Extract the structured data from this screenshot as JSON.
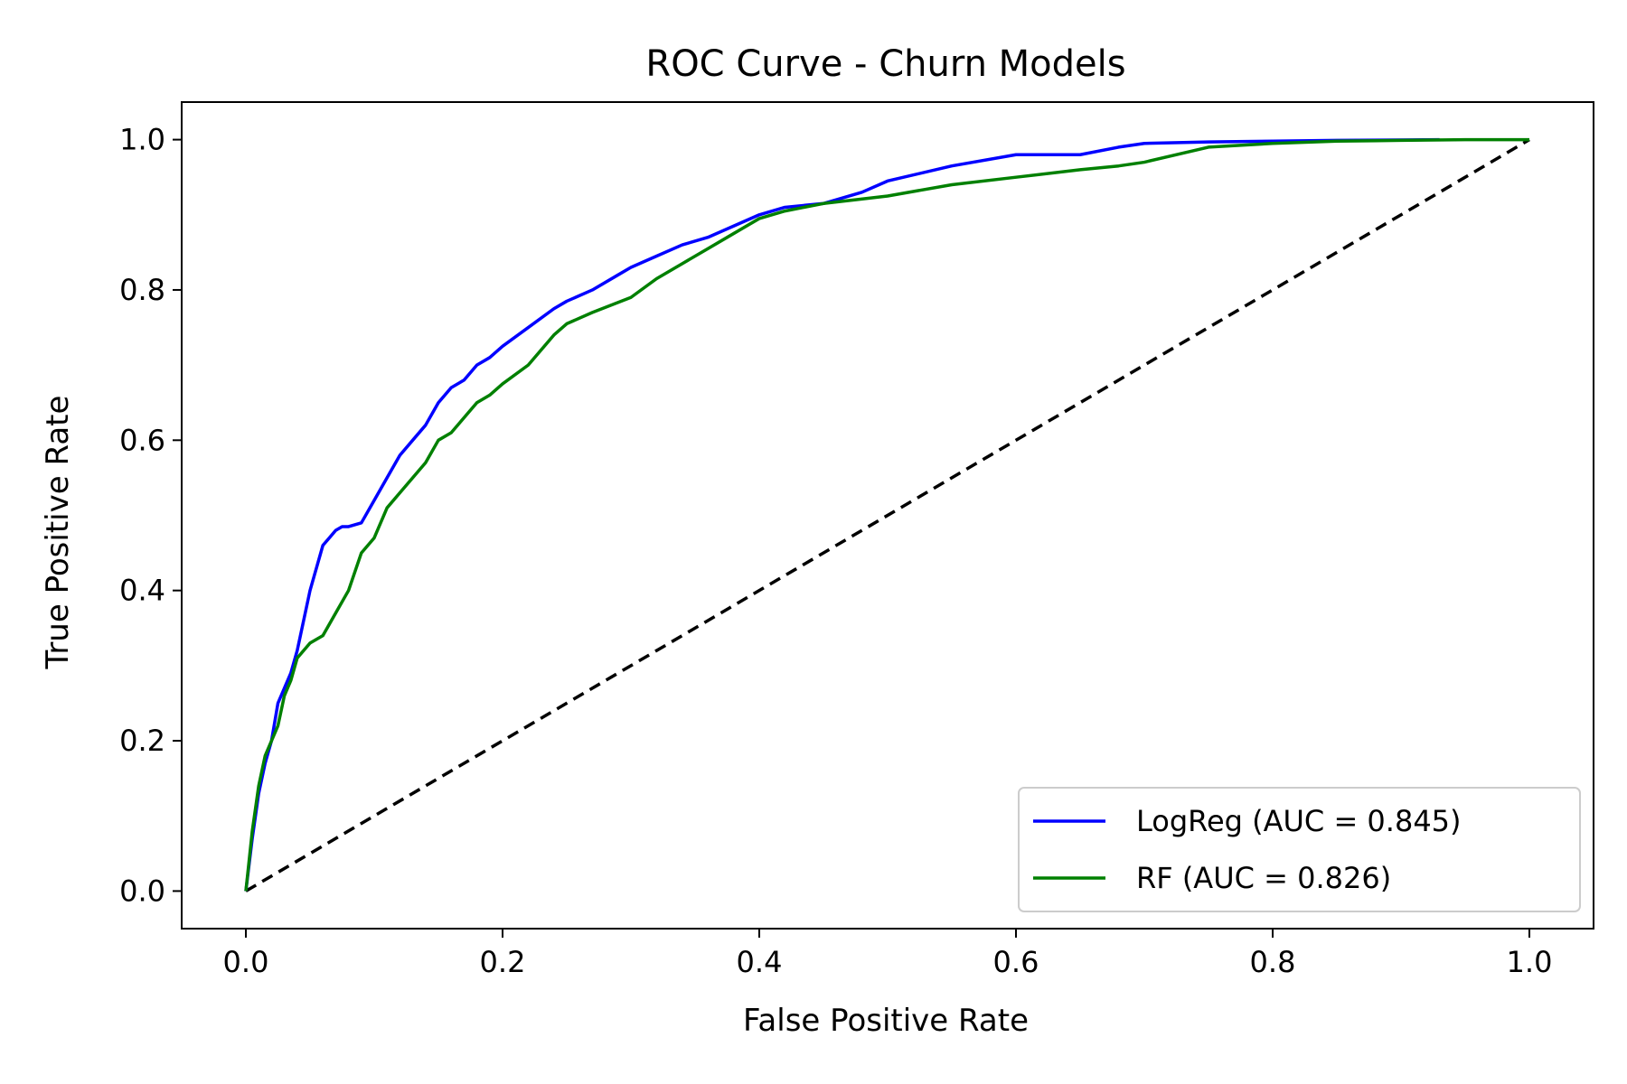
{
  "chart_data": {
    "type": "line",
    "title": "ROC Curve - Churn Models",
    "xlabel": "False Positive Rate",
    "ylabel": "True Positive Rate",
    "xlim": [
      -0.05,
      1.05
    ],
    "ylim": [
      -0.05,
      1.05
    ],
    "xticks": [
      "0.0",
      "0.2",
      "0.4",
      "0.6",
      "0.8",
      "1.0"
    ],
    "yticks": [
      "0.0",
      "0.2",
      "0.4",
      "0.6",
      "0.8",
      "1.0"
    ],
    "grid": false,
    "legend_position": "lower-right",
    "series": [
      {
        "name": "LogReg (AUC = 0.845)",
        "color": "#0000ff",
        "style": "solid",
        "x": [
          0.0,
          0.005,
          0.01,
          0.015,
          0.02,
          0.025,
          0.03,
          0.035,
          0.04,
          0.045,
          0.05,
          0.055,
          0.06,
          0.065,
          0.07,
          0.075,
          0.08,
          0.09,
          0.1,
          0.11,
          0.12,
          0.13,
          0.14,
          0.15,
          0.16,
          0.17,
          0.18,
          0.19,
          0.2,
          0.22,
          0.24,
          0.25,
          0.27,
          0.29,
          0.3,
          0.32,
          0.34,
          0.36,
          0.38,
          0.4,
          0.42,
          0.45,
          0.48,
          0.5,
          0.55,
          0.6,
          0.65,
          0.68,
          0.7,
          0.75,
          0.8,
          0.85,
          0.93
        ],
        "y": [
          0.0,
          0.07,
          0.13,
          0.17,
          0.2,
          0.25,
          0.27,
          0.29,
          0.32,
          0.36,
          0.4,
          0.43,
          0.46,
          0.47,
          0.48,
          0.485,
          0.485,
          0.49,
          0.52,
          0.55,
          0.58,
          0.6,
          0.62,
          0.65,
          0.67,
          0.68,
          0.7,
          0.71,
          0.725,
          0.75,
          0.775,
          0.785,
          0.8,
          0.82,
          0.83,
          0.845,
          0.86,
          0.87,
          0.885,
          0.9,
          0.91,
          0.915,
          0.93,
          0.945,
          0.965,
          0.98,
          0.98,
          0.99,
          0.995,
          0.997,
          0.998,
          0.999,
          1.0
        ]
      },
      {
        "name": "RF (AUC = 0.826)",
        "color": "#008000",
        "style": "solid",
        "x": [
          0.0,
          0.005,
          0.01,
          0.015,
          0.02,
          0.025,
          0.03,
          0.035,
          0.04,
          0.05,
          0.06,
          0.07,
          0.08,
          0.09,
          0.1,
          0.11,
          0.12,
          0.13,
          0.14,
          0.15,
          0.16,
          0.17,
          0.18,
          0.19,
          0.2,
          0.22,
          0.24,
          0.25,
          0.27,
          0.3,
          0.32,
          0.34,
          0.36,
          0.38,
          0.4,
          0.42,
          0.45,
          0.5,
          0.55,
          0.6,
          0.65,
          0.68,
          0.7,
          0.75,
          0.8,
          0.85,
          0.9,
          0.95,
          1.0
        ],
        "y": [
          0.0,
          0.08,
          0.14,
          0.18,
          0.2,
          0.22,
          0.26,
          0.28,
          0.31,
          0.33,
          0.34,
          0.37,
          0.4,
          0.45,
          0.47,
          0.51,
          0.53,
          0.55,
          0.57,
          0.6,
          0.61,
          0.63,
          0.65,
          0.66,
          0.675,
          0.7,
          0.74,
          0.755,
          0.77,
          0.79,
          0.815,
          0.835,
          0.855,
          0.875,
          0.895,
          0.905,
          0.915,
          0.925,
          0.94,
          0.95,
          0.96,
          0.965,
          0.97,
          0.99,
          0.995,
          0.998,
          0.999,
          1.0,
          1.0
        ]
      }
    ],
    "reference_line": {
      "color": "#000000",
      "style": "dashed",
      "x": [
        0,
        1
      ],
      "y": [
        0,
        1
      ]
    }
  }
}
